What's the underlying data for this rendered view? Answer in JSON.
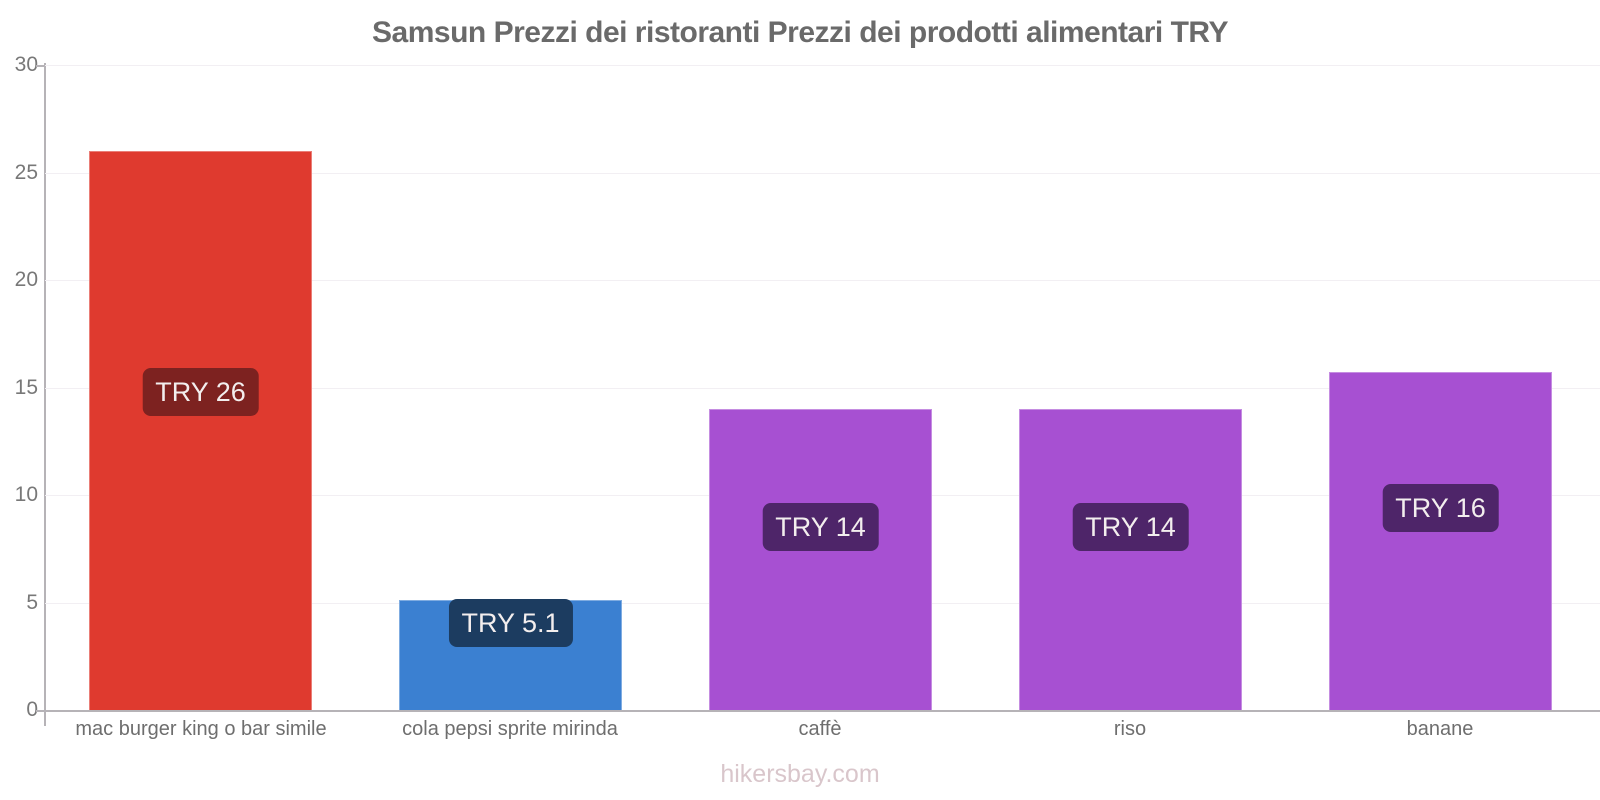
{
  "title": "Samsun Prezzi dei ristoranti Prezzi dei prodotti alimentari TRY",
  "footer": {
    "text": "hikersbay.com",
    "color": "#d9c6cb"
  },
  "chart_data": {
    "type": "bar",
    "title": "Samsun Prezzi dei ristoranti Prezzi dei prodotti alimentari TRY",
    "categories": [
      "mac burger king o bar simile",
      "cola pepsi sprite mirinda",
      "caffè",
      "riso",
      "banane"
    ],
    "values": [
      26,
      5.1,
      14,
      14,
      15.7
    ],
    "data_labels": [
      "TRY 26",
      "TRY 5.1",
      "TRY 14",
      "TRY 14",
      "TRY 16"
    ],
    "bar_colors": [
      "#df3a2f",
      "#3b80d1",
      "#a750d2",
      "#a750d2",
      "#a750d2"
    ],
    "badge_colors": [
      "#7d2220",
      "#1c3c60",
      "#4e2569",
      "#4e2569",
      "#4e2569"
    ],
    "xlabel": "",
    "ylabel": "",
    "ylim": [
      0,
      30
    ],
    "yticks": [
      0,
      5,
      10,
      15,
      20,
      25,
      30
    ],
    "grid": true,
    "legend": "none",
    "axis_color": "#b6b3b7",
    "grid_color": "#f2eff3",
    "title_color": "#6a6a6a",
    "tick_color": "#787878"
  }
}
